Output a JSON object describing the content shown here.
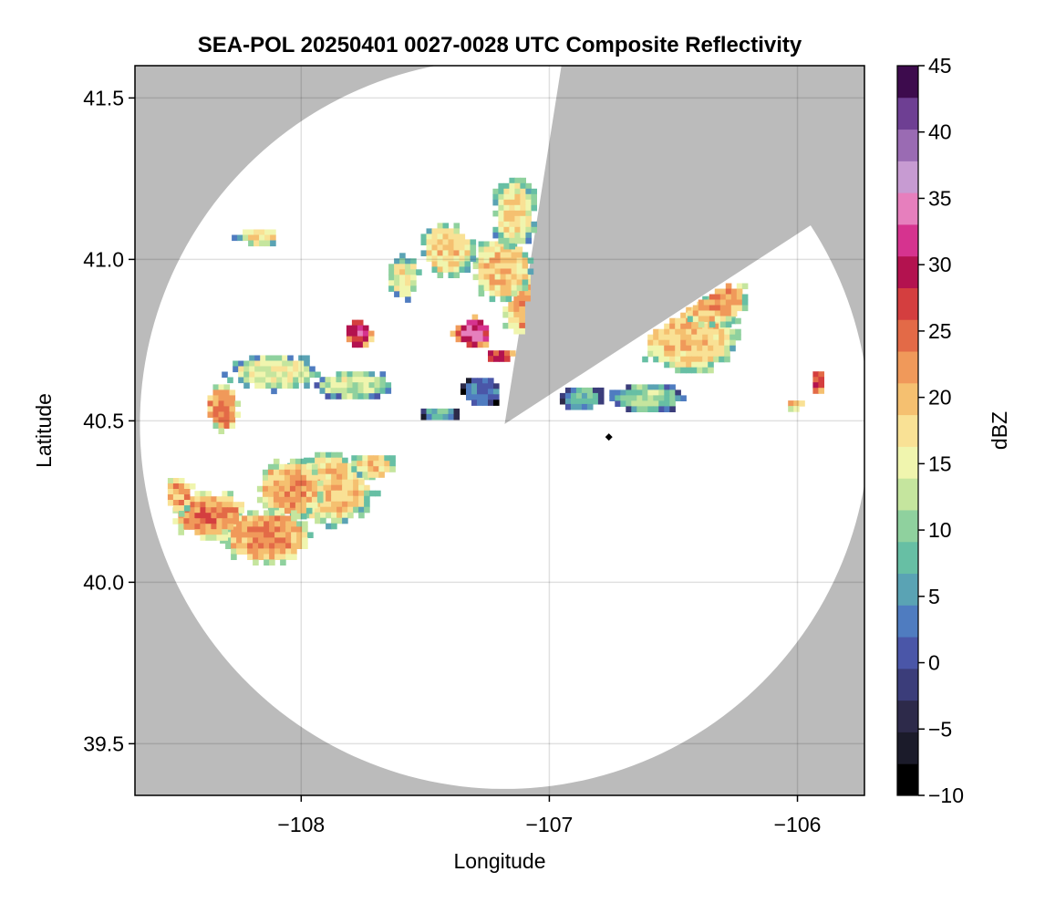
{
  "chart_data": {
    "type": "heatmap",
    "title": "SEA-POL 20250401 0027-0028 UTC Composite Reflectivity",
    "xlabel": "Longitude",
    "ylabel": "Latitude",
    "xlim": [
      -108.67,
      -105.73
    ],
    "ylim": [
      39.34,
      41.6
    ],
    "xticks": [
      -108,
      -107,
      -106
    ],
    "xtick_labels": [
      "−108",
      "−107",
      "−106"
    ],
    "yticks": [
      39.5,
      40.0,
      40.5,
      41.0,
      41.5
    ],
    "ytick_labels": [
      "39.5",
      "40.0",
      "40.5",
      "41.0",
      "41.5"
    ],
    "grid": true,
    "background_color": "#bbbbbb",
    "radar_site": {
      "lon": -107.18,
      "lat": 40.49
    },
    "radar_range_deg_lat": 1.13,
    "blocked_sectors_deg_from_north": [
      [
        9,
        57
      ]
    ],
    "marker": {
      "lon": -106.76,
      "lat": 40.45,
      "color": "#000000"
    },
    "colorbar": {
      "label": "dBZ",
      "min": -10,
      "max": 45,
      "ticks": [
        -10,
        -5,
        0,
        5,
        10,
        15,
        20,
        25,
        30,
        35,
        40,
        45
      ],
      "tick_labels": [
        "−10",
        "−5",
        "0",
        "5",
        "10",
        "15",
        "20",
        "25",
        "30",
        "35",
        "40",
        "45"
      ],
      "colors": [
        "#000000",
        "#1b1b2a",
        "#2d2a4a",
        "#3b3d7a",
        "#4a56a8",
        "#4f7cc0",
        "#5aa3b4",
        "#67bfa4",
        "#8fd19e",
        "#c5e59e",
        "#f0f5ae",
        "#f9e195",
        "#f5c070",
        "#f0995a",
        "#e36a47",
        "#d43e3f",
        "#b3124f",
        "#d6338f",
        "#e67fbd",
        "#c79bd2",
        "#9a6bb3",
        "#6e3f93",
        "#3d0b4d"
      ]
    },
    "echo_regions": [
      {
        "lon": -107.02,
        "lat": 40.86,
        "rlon": 0.19,
        "rlat": 0.13,
        "dbz": 24
      },
      {
        "lon": -107.2,
        "lat": 40.98,
        "rlon": 0.13,
        "rlat": 0.11,
        "dbz": 20
      },
      {
        "lon": -107.15,
        "lat": 41.15,
        "rlon": 0.1,
        "rlat": 0.12,
        "dbz": 18
      },
      {
        "lon": -107.32,
        "lat": 40.78,
        "rlon": 0.08,
        "rlat": 0.05,
        "dbz": 33
      },
      {
        "lon": -107.21,
        "lat": 40.71,
        "rlon": 0.06,
        "rlat": 0.025,
        "dbz": 29
      },
      {
        "lon": -107.42,
        "lat": 41.04,
        "rlon": 0.12,
        "rlat": 0.09,
        "dbz": 19
      },
      {
        "lon": -107.6,
        "lat": 40.95,
        "rlon": 0.07,
        "rlat": 0.07,
        "dbz": 17
      },
      {
        "lon": -107.28,
        "lat": 40.6,
        "rlon": 0.1,
        "rlat": 0.05,
        "dbz": 4
      },
      {
        "lon": -107.45,
        "lat": 40.53,
        "rlon": 0.09,
        "rlat": 0.025,
        "dbz": 7
      },
      {
        "lon": -107.78,
        "lat": 40.78,
        "rlon": 0.06,
        "rlat": 0.05,
        "dbz": 30
      },
      {
        "lon": -107.8,
        "lat": 40.62,
        "rlon": 0.17,
        "rlat": 0.05,
        "dbz": 14
      },
      {
        "lon": -108.12,
        "lat": 40.66,
        "rlon": 0.2,
        "rlat": 0.06,
        "dbz": 16
      },
      {
        "lon": -108.33,
        "lat": 40.55,
        "rlon": 0.07,
        "rlat": 0.08,
        "dbz": 24
      },
      {
        "lon": -108.18,
        "lat": 41.08,
        "rlon": 0.1,
        "rlat": 0.03,
        "dbz": 18
      },
      {
        "lon": -107.9,
        "lat": 40.3,
        "rlon": 0.2,
        "rlat": 0.12,
        "dbz": 20
      },
      {
        "lon": -108.05,
        "lat": 40.3,
        "rlon": 0.15,
        "rlat": 0.1,
        "dbz": 22
      },
      {
        "lon": -108.15,
        "lat": 40.15,
        "rlon": 0.2,
        "rlat": 0.09,
        "dbz": 23
      },
      {
        "lon": -108.38,
        "lat": 40.22,
        "rlon": 0.16,
        "rlat": 0.08,
        "dbz": 24
      },
      {
        "lon": -108.5,
        "lat": 40.28,
        "rlon": 0.06,
        "rlat": 0.06,
        "dbz": 22
      },
      {
        "lon": -107.72,
        "lat": 40.37,
        "rlon": 0.1,
        "rlat": 0.04,
        "dbz": 20
      },
      {
        "lon": -106.45,
        "lat": 40.78,
        "rlon": 0.22,
        "rlat": 0.14,
        "dbz": 20
      },
      {
        "lon": -106.35,
        "lat": 40.88,
        "rlon": 0.16,
        "rlat": 0.08,
        "dbz": 22
      },
      {
        "lon": -106.62,
        "lat": 40.58,
        "rlon": 0.16,
        "rlat": 0.05,
        "dbz": 12
      },
      {
        "lon": -106.88,
        "lat": 40.58,
        "rlon": 0.1,
        "rlat": 0.04,
        "dbz": 9
      },
      {
        "lon": -105.93,
        "lat": 40.63,
        "rlon": 0.03,
        "rlat": 0.04,
        "dbz": 28
      },
      {
        "lon": -106.02,
        "lat": 40.56,
        "rlon": 0.04,
        "rlat": 0.02,
        "dbz": 21
      }
    ]
  }
}
